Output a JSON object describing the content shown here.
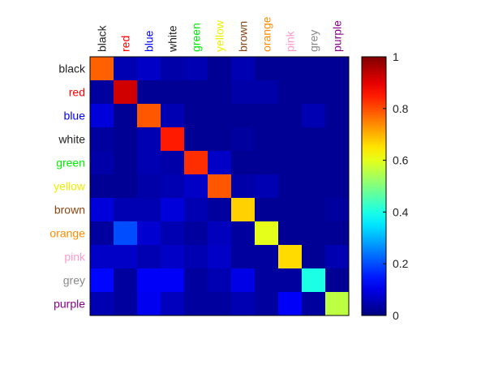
{
  "chart_data": {
    "type": "heatmap",
    "rows": [
      "black",
      "red",
      "blue",
      "white",
      "green",
      "yellow",
      "brown",
      "orange",
      "pink",
      "grey",
      "purple"
    ],
    "columns": [
      "black",
      "red",
      "blue",
      "white",
      "green",
      "yellow",
      "brown",
      "orange",
      "pink",
      "grey",
      "purple"
    ],
    "label_colors": {
      "black": "#222222",
      "red": "#ff0000",
      "blue": "#0000ff",
      "white": "#222222",
      "green": "#00ee00",
      "yellow": "#eeee00",
      "brown": "#8b4513",
      "orange": "#ff8c00",
      "pink": "#ff99cc",
      "grey": "#888888",
      "purple": "#8b008b"
    },
    "values": [
      [
        0.78,
        0.05,
        0.07,
        0.04,
        0.05,
        0.02,
        0.05,
        0.02,
        0.02,
        0.02,
        0.02
      ],
      [
        0.03,
        0.92,
        0.02,
        0.02,
        0.02,
        0.02,
        0.04,
        0.04,
        0.02,
        0.02,
        0.02
      ],
      [
        0.09,
        0.02,
        0.79,
        0.05,
        0.02,
        0.02,
        0.02,
        0.02,
        0.02,
        0.05,
        0.02
      ],
      [
        0.03,
        0.02,
        0.05,
        0.85,
        0.02,
        0.02,
        0.03,
        0.02,
        0.02,
        0.02,
        0.02
      ],
      [
        0.04,
        0.02,
        0.05,
        0.04,
        0.83,
        0.07,
        0.02,
        0.02,
        0.02,
        0.02,
        0.02
      ],
      [
        0.02,
        0.02,
        0.04,
        0.05,
        0.07,
        0.79,
        0.04,
        0.05,
        0.02,
        0.02,
        0.02
      ],
      [
        0.09,
        0.05,
        0.05,
        0.09,
        0.05,
        0.03,
        0.67,
        0.02,
        0.02,
        0.02,
        0.03
      ],
      [
        0.03,
        0.2,
        0.08,
        0.05,
        0.03,
        0.06,
        0.03,
        0.6,
        0.02,
        0.02,
        0.02
      ],
      [
        0.07,
        0.07,
        0.05,
        0.07,
        0.05,
        0.07,
        0.03,
        0.03,
        0.66,
        0.02,
        0.05
      ],
      [
        0.13,
        0.03,
        0.12,
        0.12,
        0.03,
        0.05,
        0.1,
        0.03,
        0.03,
        0.4,
        0.02
      ],
      [
        0.05,
        0.03,
        0.11,
        0.06,
        0.03,
        0.03,
        0.05,
        0.03,
        0.12,
        0.03,
        0.56
      ]
    ],
    "colorbar": {
      "min": 0,
      "max": 1,
      "ticks": [
        "0",
        "0.2",
        "0.4",
        "0.6",
        "0.8",
        "1"
      ],
      "colormap": "jet"
    },
    "title": "",
    "xlabel": "",
    "ylabel": ""
  }
}
